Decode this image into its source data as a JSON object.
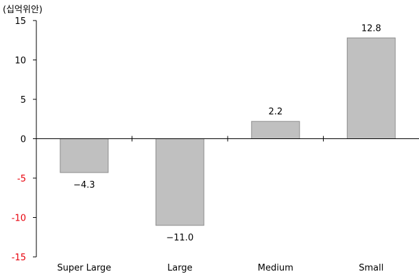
{
  "chart_data": {
    "type": "bar",
    "title": "",
    "unit_label": "(십억위안)",
    "xlabel": "",
    "ylabel": "",
    "categories": [
      "Super Large",
      "Large",
      "Medium",
      "Small"
    ],
    "values": [
      -4.3,
      -11.0,
      2.2,
      12.8
    ],
    "data_labels": [
      "−4.3",
      "−11.0",
      "2.2",
      "12.8"
    ],
    "ylim": [
      -15,
      15
    ],
    "yticks": [
      {
        "value": 15,
        "label": "15"
      },
      {
        "value": 10,
        "label": "10"
      },
      {
        "value": 5,
        "label": "5"
      },
      {
        "value": 0,
        "label": "0"
      },
      {
        "value": -5,
        "label": "-5"
      },
      {
        "value": -10,
        "label": "-10"
      },
      {
        "value": -15,
        "label": "-15"
      }
    ],
    "grid": false,
    "legend": "none",
    "colors": {
      "bar_fill": "#c0c0c0",
      "bar_stroke": "#8c8c8c",
      "axis": "#000000",
      "positive_tick_text": "#000000",
      "negative_tick_text": "#e8000b"
    }
  }
}
